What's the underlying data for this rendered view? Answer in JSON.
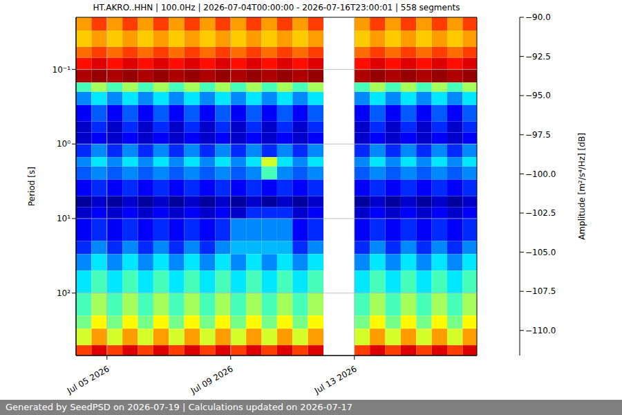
{
  "chart_data": {
    "type": "heatmap",
    "title": "HT.AKRO..HHN | 100.0Hz | 2026-07-04T00:00:00 - 2026-07-16T23:00:01 | 558 segments",
    "footer": "Generated by SeedPSD on 2026-07-19 | Calculations updated on 2026-07-17",
    "y_label": "Period [s]",
    "log": "y",
    "grid": true,
    "xlim": [
      4,
      16.96
    ],
    "xticks": [
      {
        "value": 5,
        "label": "Jul 05 2026"
      },
      {
        "value": 9,
        "label": "Jul 09 2026"
      },
      {
        "value": 13,
        "label": "Jul 13 2026"
      }
    ],
    "ylim": [
      0.02,
      687
    ],
    "yticks": [
      {
        "value": 0.1,
        "label": "10⁻¹"
      },
      {
        "value": 1,
        "label": "10⁰"
      },
      {
        "value": 10,
        "label": "10¹"
      },
      {
        "value": 100,
        "label": "10²"
      }
    ],
    "x_edges": [
      4,
      4.5,
      5,
      5.5,
      6,
      6.5,
      7,
      7.5,
      8,
      8.5,
      9,
      9.5,
      10,
      10.5,
      11,
      11.5,
      12,
      12.5,
      13,
      13.5,
      14,
      14.5,
      15,
      15.5,
      16,
      16.5,
      16.96
    ],
    "y_edges": [
      0.02,
      0.03,
      0.05,
      0.07,
      0.1,
      0.15,
      0.2,
      0.3,
      0.5,
      0.7,
      1,
      1.5,
      2,
      3,
      5,
      7,
      10,
      20,
      30,
      50,
      100,
      200,
      300,
      500,
      687
    ],
    "cells": [
      [
        -96,
        -94,
        -96,
        -94,
        -96,
        -94,
        -96,
        -94,
        -96,
        -94,
        -96,
        -94,
        -96,
        -94,
        -96,
        -94,
        null,
        null,
        -96,
        -94,
        -96,
        -94,
        -96,
        -94,
        -96,
        -94
      ],
      [
        -97,
        -96,
        -97,
        -96,
        -97,
        -96,
        -97,
        -96,
        -97,
        -96,
        -97,
        -96,
        -97,
        -96,
        -97,
        -96,
        null,
        null,
        -97,
        -96,
        -97,
        -96,
        -97,
        -96,
        -97,
        -96
      ],
      [
        -95,
        -94,
        -95,
        -94,
        -95,
        -94,
        -95,
        -94,
        -95,
        -94,
        -95,
        -94,
        -95,
        -94,
        -95,
        -94,
        null,
        null,
        -95,
        -94,
        -95,
        -94,
        -95,
        -94,
        -95,
        -94
      ],
      [
        -93,
        -92,
        -93,
        -92,
        -93,
        -92,
        -93,
        -92,
        -93,
        -92,
        -93,
        -92,
        -93,
        -92,
        -93,
        -92,
        null,
        null,
        -93,
        -92,
        -93,
        -92,
        -93,
        -92,
        -93,
        -92
      ],
      [
        -91,
        -90.5,
        -91,
        -90.5,
        -91,
        -90.5,
        -91,
        -90.5,
        -91,
        -90.5,
        -91,
        -90.5,
        -91,
        -90.5,
        -91,
        -90.5,
        null,
        null,
        -91,
        -90.5,
        -91,
        -90.5,
        -91,
        -90.5,
        -91,
        -90.5
      ],
      [
        -102,
        -100,
        -102,
        -100,
        -102,
        -100,
        -102,
        -100,
        -102,
        -100,
        -102,
        -100,
        -102,
        -100,
        -102,
        -100,
        null,
        null,
        -102,
        -100,
        -102,
        -100,
        -102,
        -100,
        -102,
        -100
      ],
      [
        -106,
        -104,
        -106,
        -104,
        -106,
        -104,
        -106,
        -104,
        -106,
        -104,
        -106,
        -104,
        -106,
        -104,
        -106,
        -104,
        null,
        null,
        -106,
        -104,
        -106,
        -104,
        -106,
        -104,
        -106,
        -104
      ],
      [
        -109,
        -107,
        -109,
        -107,
        -109,
        -107,
        -109,
        -107,
        -109,
        -107,
        -109,
        -107,
        -109,
        -107,
        -109,
        -107,
        null,
        null,
        -109,
        -107,
        -109,
        -107,
        -109,
        -107,
        -109,
        -107
      ],
      [
        -110,
        -108,
        -110,
        -108,
        -110,
        -108,
        -110,
        -108,
        -110,
        -108,
        -110,
        -108,
        -110,
        -108,
        -110,
        -108,
        null,
        null,
        -110,
        -108,
        -110,
        -108,
        -110,
        -108,
        -110,
        -108
      ],
      [
        -110,
        -109,
        -110,
        -109,
        -110,
        -109,
        -110,
        -109,
        -110,
        -109,
        -110,
        -109,
        -110,
        -109,
        -110,
        -109,
        null,
        null,
        -110,
        -109,
        -110,
        -109,
        -110,
        -109,
        -110,
        -109
      ],
      [
        -108,
        -106,
        -108,
        -106,
        -108,
        -106,
        -108,
        -106,
        -108,
        -106,
        -108,
        -106,
        -108,
        -106,
        -108,
        -106,
        null,
        null,
        -108,
        -106,
        -108,
        -106,
        -108,
        -106,
        -108,
        -106
      ],
      [
        -106,
        -104,
        -106,
        -104,
        -106,
        -104,
        -106,
        -104,
        -106,
        -104,
        -106,
        -104,
        -99,
        -104,
        -106,
        -104,
        null,
        null,
        -106,
        -104,
        -106,
        -104,
        -106,
        -104,
        -106,
        -104
      ],
      [
        -107,
        -106,
        -107,
        -106,
        -107,
        -106,
        -107,
        -106,
        -107,
        -106,
        -107,
        -106,
        -102,
        -106,
        -107,
        -106,
        null,
        null,
        -107,
        -106,
        -107,
        -106,
        -107,
        -106,
        -107,
        -106
      ],
      [
        -109,
        -108,
        -109,
        -108,
        -109,
        -108,
        -109,
        -108,
        -109,
        -108,
        -109,
        -108,
        -109,
        -108,
        -109,
        -108,
        null,
        null,
        -109,
        -108,
        -109,
        -108,
        -109,
        -108,
        -109,
        -108
      ],
      [
        -111,
        -110,
        -111,
        -110,
        -111,
        -110,
        -111,
        -110,
        -111,
        -110,
        -111,
        -110,
        -111,
        -110,
        -111,
        -110,
        null,
        null,
        -111,
        -110,
        -111,
        -110,
        -111,
        -110,
        -111,
        -110
      ],
      [
        -110,
        -109,
        -110,
        -109,
        -110,
        -109,
        -110,
        -109,
        -110,
        -109,
        -110,
        -108,
        -108,
        -108,
        -110,
        -109,
        null,
        null,
        -110,
        -109,
        -110,
        -109,
        -110,
        -109,
        -110,
        -109
      ],
      [
        -109,
        -108,
        -109,
        -108,
        -109,
        -108,
        -109,
        -108,
        -109,
        -108,
        -106,
        -106,
        -106,
        -106,
        -109,
        -108,
        null,
        null,
        -109,
        -108,
        -109,
        -108,
        -109,
        -108,
        -109,
        -108
      ],
      [
        -108,
        -106,
        -108,
        -106,
        -108,
        -106,
        -108,
        -106,
        -108,
        -106,
        -105,
        -105,
        -105,
        -105,
        -108,
        -106,
        null,
        null,
        -108,
        -106,
        -108,
        -106,
        -108,
        -106,
        -108,
        -106
      ],
      [
        -106,
        -104,
        -106,
        -104,
        -106,
        -104,
        -106,
        -104,
        -106,
        -104,
        -106,
        -104,
        -106,
        -104,
        -106,
        -104,
        null,
        null,
        -106,
        -104,
        -106,
        -104,
        -106,
        -104,
        -106,
        -104
      ],
      [
        -104,
        -102,
        -104,
        -102,
        -104,
        -102,
        -104,
        -102,
        -104,
        -102,
        -104,
        -102,
        -104,
        -102,
        -104,
        -102,
        null,
        null,
        -104,
        -102,
        -104,
        -102,
        -104,
        -102,
        -104,
        -102
      ],
      [
        -102,
        -100,
        -102,
        -100,
        -102,
        -100,
        -102,
        -100,
        -102,
        -100,
        -102,
        -100,
        -102,
        -100,
        -102,
        -100,
        null,
        null,
        -102,
        -100,
        -102,
        -100,
        -102,
        -100,
        -102,
        -100
      ],
      [
        -101,
        -98,
        -101,
        -98,
        -101,
        -98,
        -101,
        -98,
        -101,
        -98,
        -101,
        -98,
        -101,
        -98,
        -101,
        -98,
        null,
        null,
        -101,
        -98,
        -101,
        -98,
        -101,
        -98,
        -101,
        -98
      ],
      [
        -99,
        -96,
        -99,
        -96,
        -99,
        -96,
        -99,
        -96,
        -99,
        -96,
        -99,
        -96,
        -99,
        -96,
        -99,
        -96,
        null,
        null,
        -99,
        -96,
        -99,
        -96,
        -99,
        -96,
        -99,
        -96
      ],
      [
        -94,
        -92,
        -94,
        -92,
        -94,
        -92,
        -94,
        -92,
        -94,
        -92,
        -94,
        -92,
        -94,
        -92,
        -94,
        -92,
        null,
        null,
        -94,
        -92,
        -94,
        -92,
        -94,
        -92,
        -94,
        -92
      ]
    ],
    "colorbar": {
      "label": "Amplitude [m²/s⁴/Hz] [dB]",
      "range": [
        -111.6,
        -90
      ],
      "ticks": [
        {
          "value": -90,
          "label": "−90.0"
        },
        {
          "value": -92.5,
          "label": "−92.5"
        },
        {
          "value": -95,
          "label": "−95.0"
        },
        {
          "value": -97.5,
          "label": "−97.5"
        },
        {
          "value": -100,
          "label": "−100.0"
        },
        {
          "value": -102.5,
          "label": "−102.5"
        },
        {
          "value": -105,
          "label": "−105.0"
        },
        {
          "value": -107.5,
          "label": "−107.5"
        },
        {
          "value": -110,
          "label": "−110.0"
        }
      ]
    }
  }
}
